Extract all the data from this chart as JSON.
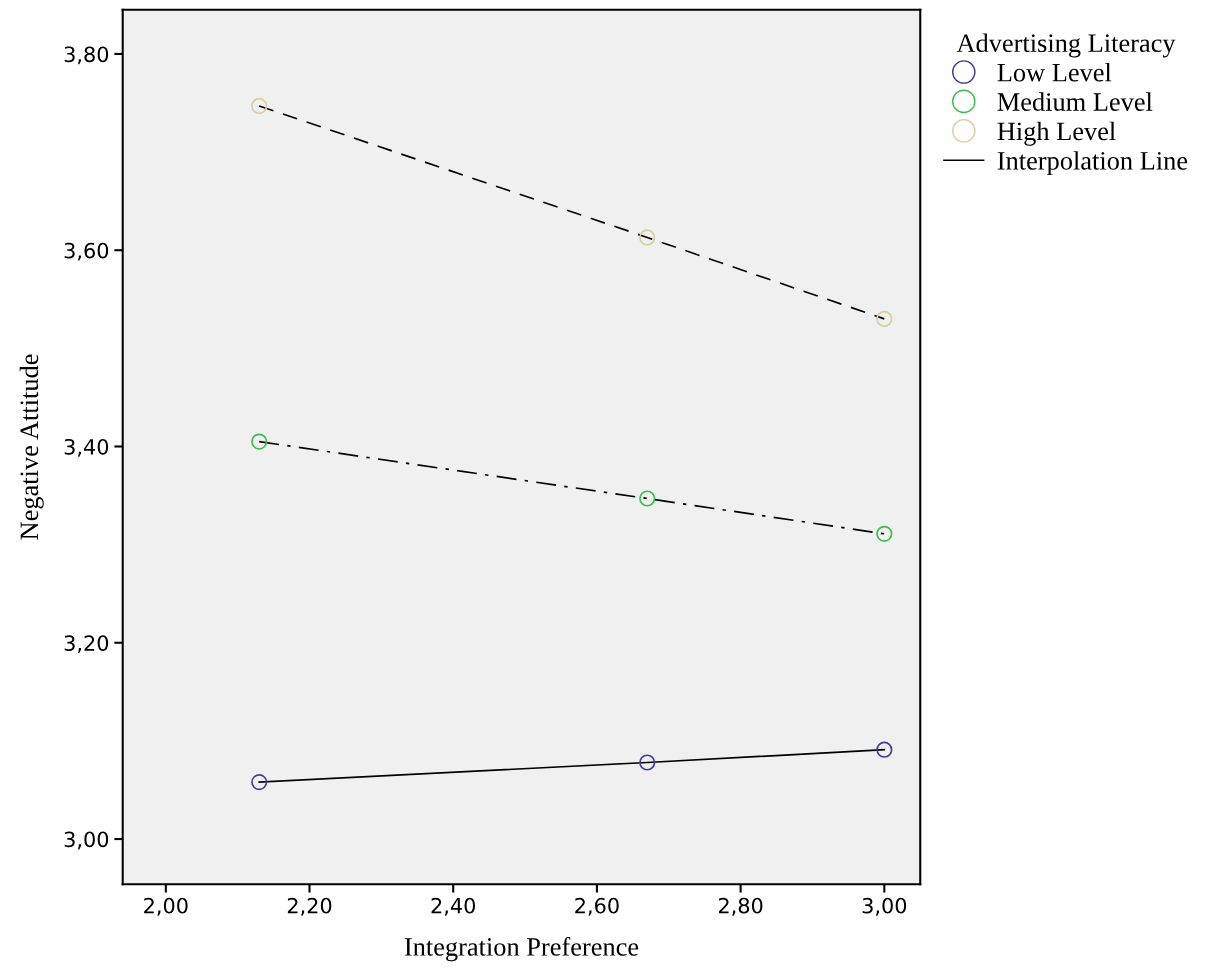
{
  "chart_data": {
    "type": "scatter",
    "xlabel": "Integration Preference",
    "ylabel": "Negative Attitude",
    "legend_title": "Advertising Literacy",
    "legend": "top right",
    "grid": false,
    "marker": "circle",
    "xlim": [
      1.94,
      3.05
    ],
    "ylim": [
      2.954,
      3.845
    ],
    "xticks": [
      {
        "value": 2.0,
        "label": "2,00"
      },
      {
        "value": 2.2,
        "label": "2,20"
      },
      {
        "value": 2.4,
        "label": "2,40"
      },
      {
        "value": 2.6,
        "label": "2,60"
      },
      {
        "value": 2.8,
        "label": "2,80"
      },
      {
        "value": 3.0,
        "label": "3,00"
      }
    ],
    "yticks": [
      {
        "value": 3.0,
        "label": "3,00"
      },
      {
        "value": 3.2,
        "label": "3,20"
      },
      {
        "value": 3.4,
        "label": "3,40"
      },
      {
        "value": 3.6,
        "label": "3,60"
      },
      {
        "value": 3.8,
        "label": "3,80"
      }
    ],
    "series": [
      {
        "name": "Low Level",
        "color": "#3f3f9a",
        "x": [
          2.13,
          2.67,
          3.0
        ],
        "values": [
          3.058,
          3.078,
          3.091
        ]
      },
      {
        "name": "Medium Level",
        "color": "#3cbf4a",
        "x": [
          2.13,
          2.67,
          3.0
        ],
        "values": [
          3.405,
          3.347,
          3.311
        ]
      },
      {
        "name": "High Level",
        "color": "#d8cf9c",
        "x": [
          2.13,
          2.67,
          3.0
        ],
        "values": [
          3.747,
          3.613,
          3.53
        ]
      },
      {
        "name": "Interpolation Line",
        "type": "line",
        "color": "#000000",
        "line_style": "solid",
        "marker": "none",
        "x": [
          2.13,
          2.67,
          3.0
        ],
        "values": [
          3.058,
          3.078,
          3.091
        ]
      },
      {
        "type": "line",
        "color": "#000000",
        "line_style": "dashdot",
        "marker": "none",
        "x": [
          2.13,
          2.67,
          3.0
        ],
        "values": [
          3.405,
          3.347,
          3.311
        ]
      },
      {
        "type": "line",
        "color": "#000000",
        "line_style": "dashed",
        "marker": "none",
        "x": [
          2.13,
          2.67,
          3.0
        ],
        "values": [
          3.747,
          3.613,
          3.53
        ]
      }
    ]
  }
}
